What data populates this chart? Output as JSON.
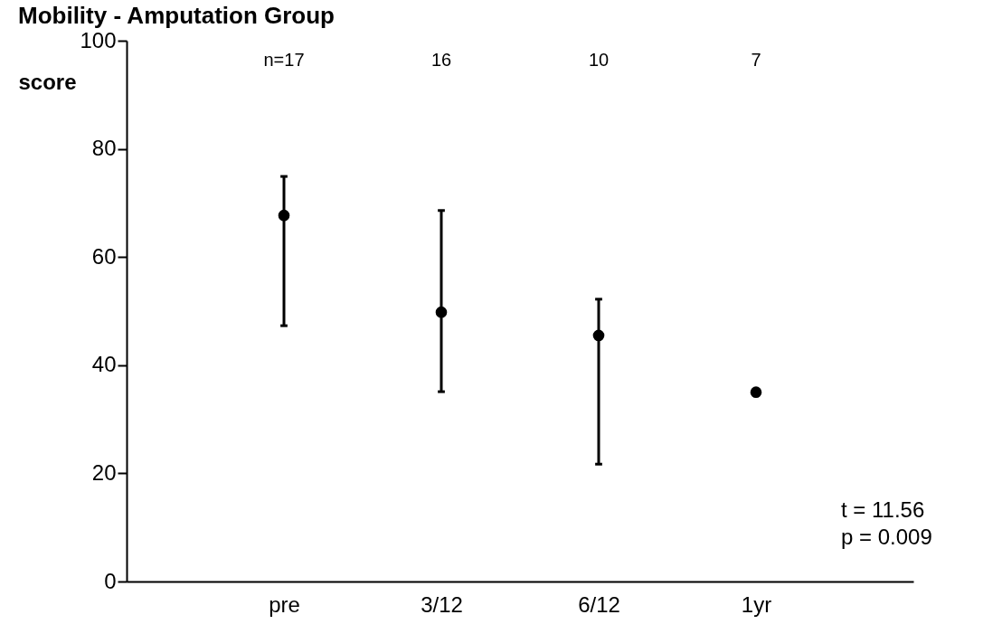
{
  "chart_data": {
    "type": "scatter",
    "title": "Mobility - Amputation Group",
    "ylabel": "score",
    "categories": [
      "pre",
      "3/12",
      "6/12",
      "1yr"
    ],
    "values": [
      67.7,
      49.8,
      45.5,
      35.0
    ],
    "errors": [
      [
        47.3,
        74.9
      ],
      [
        35.1,
        68.6
      ],
      [
        21.7,
        52.2
      ],
      null
    ],
    "color": "#000000",
    "marker": "circle",
    "ylim": [
      0,
      100
    ],
    "yticks": [
      0,
      20,
      40,
      60,
      80,
      100
    ],
    "grid": false,
    "annotations": [
      "n=17",
      "16",
      "10",
      "7",
      "t  = 11.56",
      "p = 0.009"
    ]
  }
}
